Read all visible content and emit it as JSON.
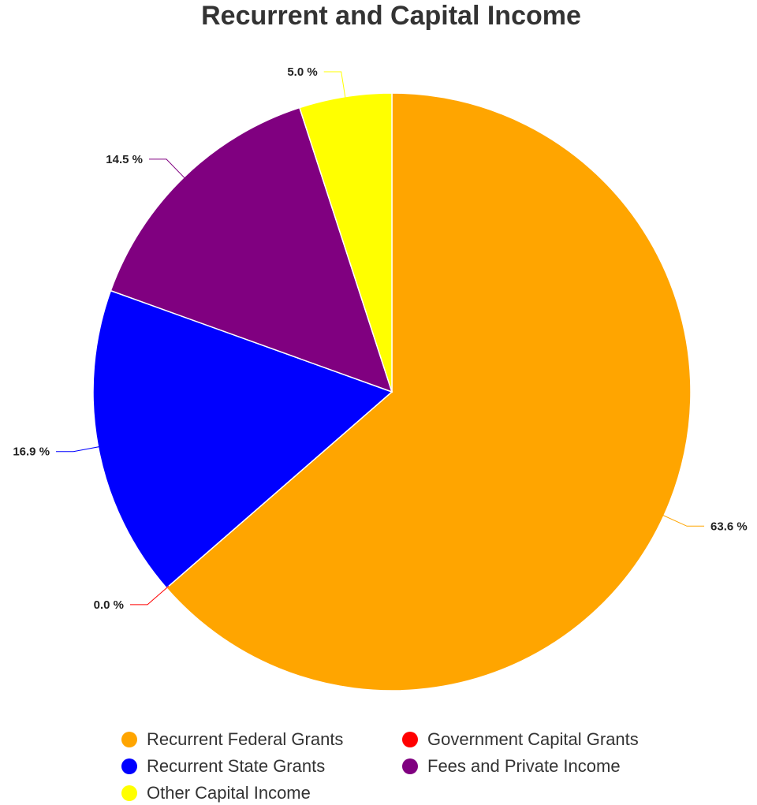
{
  "chart_data": {
    "type": "pie",
    "title": "Recurrent and Capital Income",
    "categories": [
      "Recurrent Federal Grants",
      "Government Capital Grants",
      "Recurrent State Grants",
      "Fees and Private Income",
      "Other Capital Income"
    ],
    "values": [
      63.6,
      0.0,
      16.9,
      14.5,
      5.0
    ],
    "labels": [
      "63.6 %",
      "0.0 %",
      "16.9 %",
      "14.5 %",
      "5.0 %"
    ],
    "colors": [
      "#FFA500",
      "#FF0000",
      "#0000FF",
      "#800080",
      "#FFFF00"
    ],
    "legend_position": "bottom"
  }
}
